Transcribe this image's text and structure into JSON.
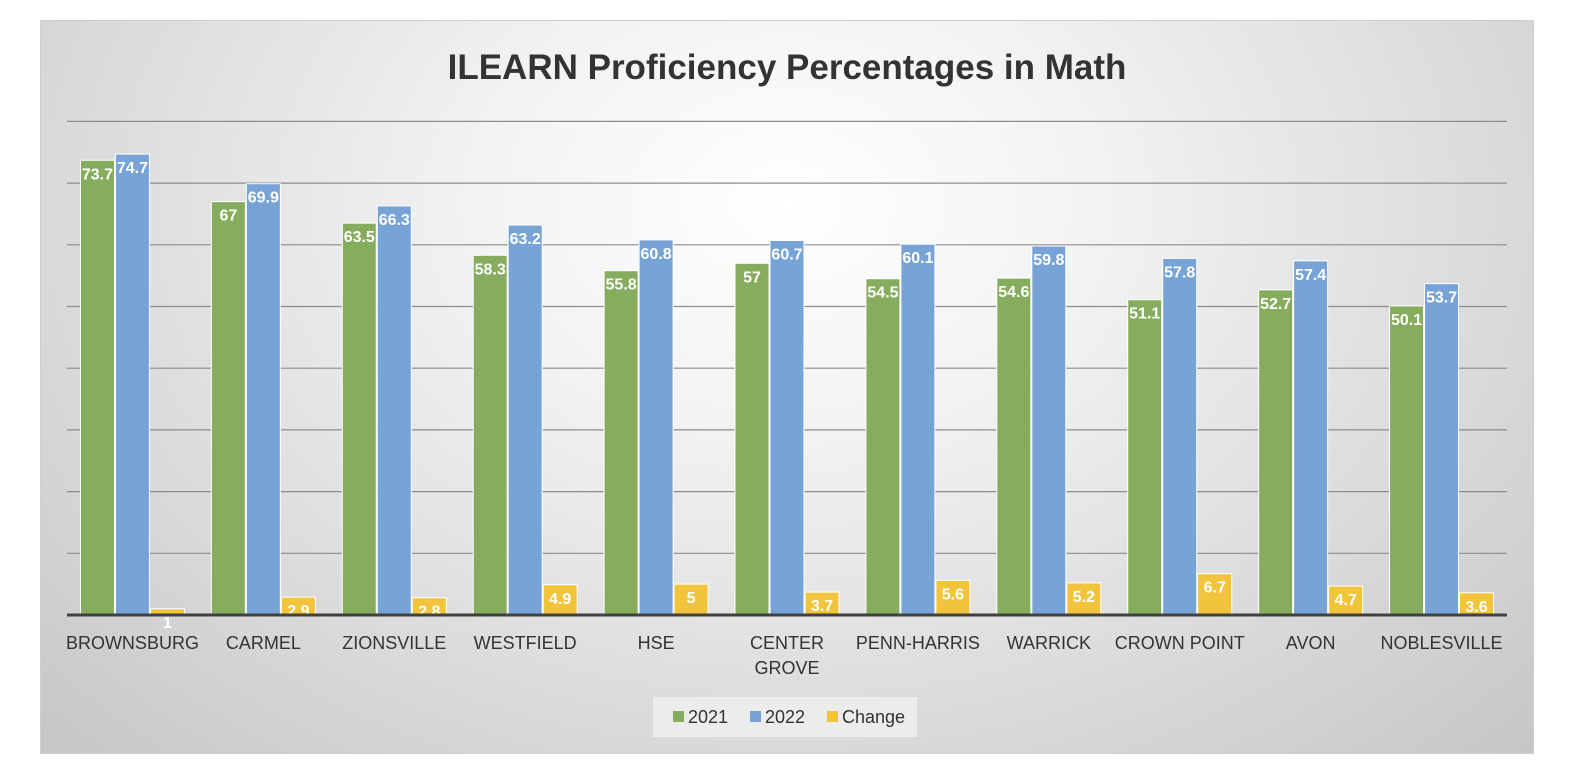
{
  "chart_data": {
    "type": "bar",
    "title": "ILEARN Proficiency Percentages in Math",
    "xlabel": "",
    "ylabel": "",
    "categories": [
      "BROWNSBURG",
      "CARMEL",
      "ZIONSVILLE",
      "WESTFIELD",
      "HSE",
      "CENTER GROVE",
      "PENN-HARRIS",
      "WARRICK",
      "CROWN POINT",
      "AVON",
      "NOBLESVILLE"
    ],
    "series": [
      {
        "name": "2021",
        "color": "#86ad5e",
        "values": [
          73.7,
          67,
          63.5,
          58.3,
          55.8,
          57,
          54.5,
          54.6,
          51.1,
          52.7,
          50.1
        ]
      },
      {
        "name": "2022",
        "color": "#78a3d6",
        "values": [
          74.7,
          69.9,
          66.3,
          63.2,
          60.8,
          60.7,
          60.1,
          59.8,
          57.8,
          57.4,
          53.7
        ]
      },
      {
        "name": "Change",
        "color": "#f2c43c",
        "values": [
          1,
          2.9,
          2.8,
          4.9,
          5,
          3.7,
          5.6,
          5.2,
          6.7,
          4.7,
          3.6
        ]
      }
    ],
    "ylim": [
      0,
      80
    ],
    "grid": true,
    "legend_position": "bottom"
  }
}
